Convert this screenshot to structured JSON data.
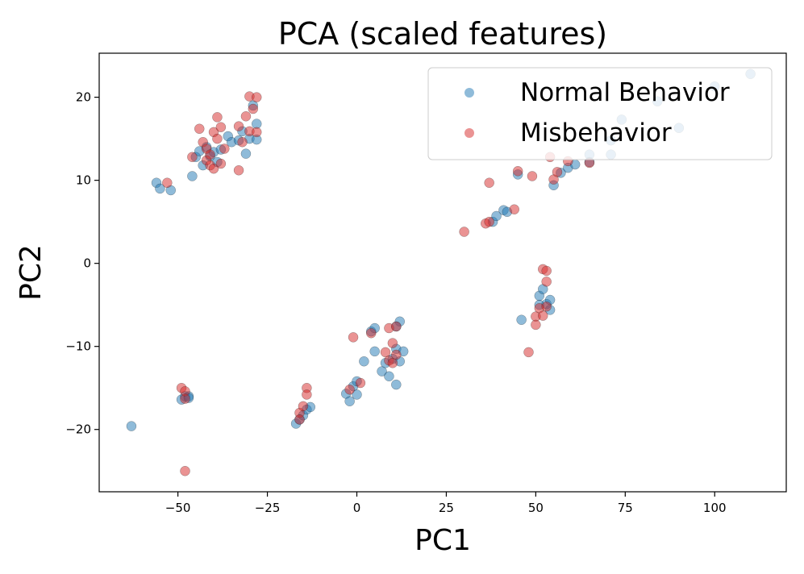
{
  "chart_data": {
    "type": "scatter",
    "title": "PCA (scaled features)",
    "xlabel": "PC1",
    "ylabel": "PC2",
    "xlim": [
      -72,
      120
    ],
    "ylim": [
      -27.5,
      25.3
    ],
    "xticks": [
      -50,
      -25,
      0,
      25,
      50,
      75,
      100
    ],
    "xtick_labels": [
      "−50",
      "−25",
      "0",
      "25",
      "50",
      "75",
      "100"
    ],
    "yticks": [
      -20,
      -10,
      0,
      10,
      20
    ],
    "ytick_labels": [
      "−20",
      "−10",
      "0",
      "10",
      "20"
    ],
    "legend_position": "top-right",
    "series": [
      {
        "name": "Normal Behavior",
        "color": "#1f77b4",
        "points": [
          [
            -63,
            -19.6
          ],
          [
            -56,
            9.7
          ],
          [
            -55,
            9.0
          ],
          [
            -52,
            8.8
          ],
          [
            -46,
            10.5
          ],
          [
            -45,
            12.8
          ],
          [
            -44,
            13.5
          ],
          [
            -43,
            11.8
          ],
          [
            -42,
            14.0
          ],
          [
            -41,
            12.9
          ],
          [
            -40,
            13.4
          ],
          [
            -39,
            12.2
          ],
          [
            -38,
            13.7
          ],
          [
            -36,
            15.3
          ],
          [
            -35,
            14.6
          ],
          [
            -33,
            14.8
          ],
          [
            -32,
            15.9
          ],
          [
            -31,
            13.2
          ],
          [
            -30,
            15.0
          ],
          [
            -29,
            19.0
          ],
          [
            -28,
            16.8
          ],
          [
            -28,
            14.9
          ],
          [
            -49,
            -16.4
          ],
          [
            -48,
            -16.0
          ],
          [
            -47,
            -16.0
          ],
          [
            -47,
            -16.2
          ],
          [
            -17,
            -19.3
          ],
          [
            -16,
            -18.8
          ],
          [
            -15,
            -18.3
          ],
          [
            -14,
            -17.6
          ],
          [
            -13,
            -17.3
          ],
          [
            -3,
            -15.7
          ],
          [
            -2,
            -16.6
          ],
          [
            -1,
            -14.8
          ],
          [
            0,
            -14.2
          ],
          [
            0,
            -15.8
          ],
          [
            2,
            -11.8
          ],
          [
            4,
            -8.2
          ],
          [
            5,
            -7.8
          ],
          [
            5,
            -10.6
          ],
          [
            7,
            -13.0
          ],
          [
            8,
            -12.0
          ],
          [
            9,
            -13.6
          ],
          [
            10,
            -11.5
          ],
          [
            11,
            -14.6
          ],
          [
            11,
            -10.3
          ],
          [
            12,
            -11.8
          ],
          [
            12,
            -7.0
          ],
          [
            13,
            -10.6
          ],
          [
            11,
            -7.6
          ],
          [
            38,
            5.0
          ],
          [
            39,
            5.7
          ],
          [
            41,
            6.4
          ],
          [
            42,
            6.2
          ],
          [
            45,
            10.7
          ],
          [
            46,
            -6.8
          ],
          [
            51,
            -3.9
          ],
          [
            51,
            -5.0
          ],
          [
            52,
            -3.1
          ],
          [
            53,
            -4.9
          ],
          [
            54,
            -4.4
          ],
          [
            54,
            -5.6
          ],
          [
            55,
            9.4
          ],
          [
            57,
            10.9
          ],
          [
            59,
            11.5
          ],
          [
            61,
            11.9
          ],
          [
            65,
            13.1
          ],
          [
            65,
            12.2
          ],
          [
            71,
            13.1
          ],
          [
            71,
            14.8
          ],
          [
            74,
            17.3
          ],
          [
            84,
            19.5
          ],
          [
            90,
            16.3
          ],
          [
            100,
            21.3
          ],
          [
            110,
            22.8
          ]
        ]
      },
      {
        "name": "Misbehavior",
        "color": "#d62728",
        "points": [
          [
            -53,
            9.7
          ],
          [
            -49,
            -15.0
          ],
          [
            -48,
            -15.4
          ],
          [
            -48,
            -16.3
          ],
          [
            -48,
            -25.0
          ],
          [
            -46,
            12.8
          ],
          [
            -44,
            16.2
          ],
          [
            -43,
            14.6
          ],
          [
            -42,
            13.8
          ],
          [
            -42,
            12.4
          ],
          [
            -41,
            11.8
          ],
          [
            -41,
            13.1
          ],
          [
            -40,
            11.4
          ],
          [
            -40,
            15.8
          ],
          [
            -39,
            17.6
          ],
          [
            -39,
            15.0
          ],
          [
            -38,
            12.0
          ],
          [
            -38,
            16.4
          ],
          [
            -37,
            13.8
          ],
          [
            -33,
            16.5
          ],
          [
            -33,
            11.2
          ],
          [
            -32,
            14.6
          ],
          [
            -31,
            17.7
          ],
          [
            -30,
            20.1
          ],
          [
            -30,
            15.9
          ],
          [
            -29,
            18.6
          ],
          [
            -28,
            20.0
          ],
          [
            -28,
            15.8
          ],
          [
            -16,
            -18.0
          ],
          [
            -16,
            -18.8
          ],
          [
            -15,
            -17.2
          ],
          [
            -14,
            -15.0
          ],
          [
            -14,
            -15.8
          ],
          [
            -2,
            -15.2
          ],
          [
            -1,
            -8.9
          ],
          [
            1,
            -14.4
          ],
          [
            4,
            -8.4
          ],
          [
            8,
            -10.7
          ],
          [
            9,
            -7.8
          ],
          [
            9,
            -11.7
          ],
          [
            10,
            -9.6
          ],
          [
            10,
            -12.0
          ],
          [
            11,
            -11.0
          ],
          [
            11,
            -7.6
          ],
          [
            30,
            3.8
          ],
          [
            36,
            4.8
          ],
          [
            37,
            9.7
          ],
          [
            37,
            5.0
          ],
          [
            44,
            6.5
          ],
          [
            45,
            11.1
          ],
          [
            48,
            -10.7
          ],
          [
            49,
            10.5
          ],
          [
            50,
            -6.4
          ],
          [
            50,
            -7.4
          ],
          [
            51,
            -5.4
          ],
          [
            52,
            -6.3
          ],
          [
            52,
            -0.7
          ],
          [
            53,
            -0.9
          ],
          [
            53,
            -5.2
          ],
          [
            53,
            -2.2
          ],
          [
            54,
            12.8
          ],
          [
            55,
            10.1
          ],
          [
            56,
            11.0
          ],
          [
            59,
            12.3
          ],
          [
            65,
            12.1
          ]
        ]
      }
    ]
  }
}
